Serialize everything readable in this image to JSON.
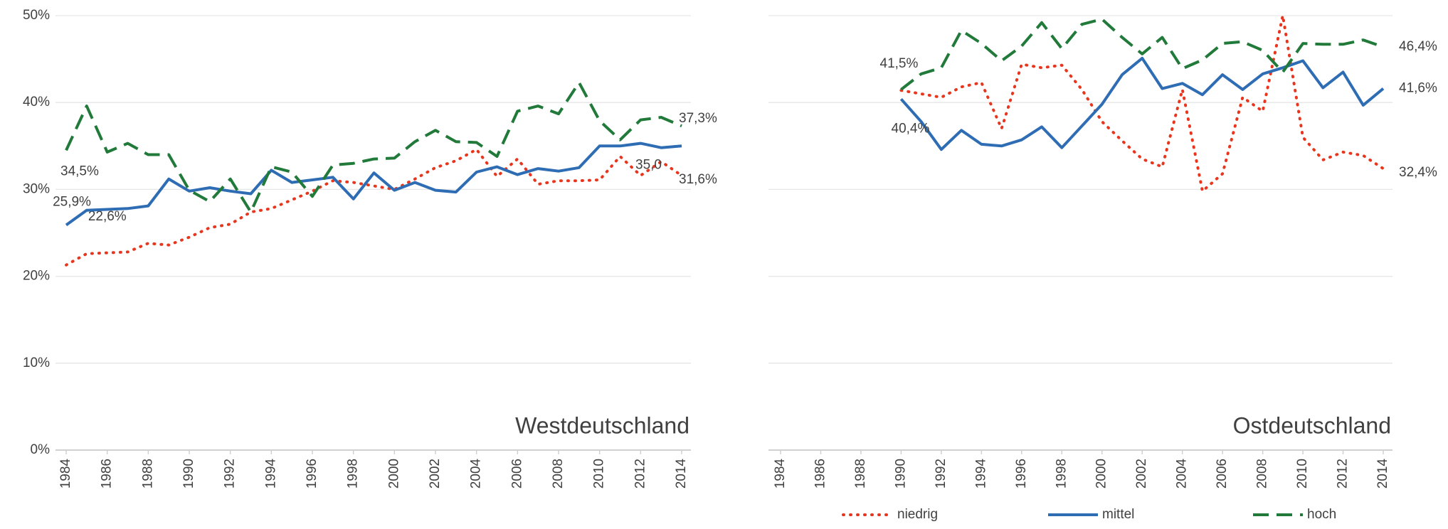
{
  "chart_data": [
    {
      "type": "line",
      "title": "Westdeutschland",
      "x": [
        1984,
        1985,
        1986,
        1987,
        1988,
        1989,
        1990,
        1991,
        1992,
        1993,
        1994,
        1995,
        1996,
        1997,
        1998,
        1999,
        2000,
        2001,
        2002,
        2003,
        2004,
        2005,
        2006,
        2007,
        2008,
        2009,
        2010,
        2011,
        2012,
        2013,
        2014
      ],
      "xlim": [
        1984,
        2014
      ],
      "xticks": [
        1984,
        1986,
        1988,
        1990,
        1992,
        1994,
        1996,
        1998,
        2000,
        2002,
        2004,
        2006,
        2008,
        2010,
        2012,
        2014
      ],
      "ylim": [
        0,
        50
      ],
      "yticks": [
        {
          "value": 0,
          "label": "0%"
        },
        {
          "value": 10,
          "label": "10%"
        },
        {
          "value": 20,
          "label": "20%"
        },
        {
          "value": 30,
          "label": "30%"
        },
        {
          "value": 40,
          "label": "40%"
        },
        {
          "value": 50,
          "label": "50%"
        }
      ],
      "grid": true,
      "series": [
        {
          "color": "#e8361e",
          "style": "dotted",
          "values": [
            21.3,
            22.6,
            22.7,
            22.8,
            23.8,
            23.6,
            24.5,
            25.6,
            26.0,
            27.4,
            27.8,
            28.8,
            29.8,
            31.0,
            30.8,
            30.4,
            30.0,
            31.2,
            32.5,
            33.3,
            34.6,
            31.5,
            33.5,
            30.6,
            31.0,
            31.0,
            31.1,
            33.8,
            31.6,
            33.2,
            31.6
          ],
          "value_labels": [
            null,
            "22,6%",
            null,
            null,
            null,
            null,
            null,
            null,
            null,
            null,
            null,
            null,
            null,
            null,
            null,
            null,
            null,
            null,
            null,
            null,
            null,
            null,
            null,
            null,
            null,
            null,
            null,
            null,
            null,
            null,
            "31,6%"
          ]
        },
        {
          "color": "#2e6db4",
          "style": "solid",
          "values": [
            25.9,
            27.6,
            27.7,
            27.8,
            28.1,
            31.2,
            29.8,
            30.2,
            29.8,
            29.5,
            32.2,
            30.8,
            31.1,
            31.4,
            28.9,
            31.9,
            29.9,
            30.8,
            29.9,
            29.7,
            32.0,
            32.6,
            31.7,
            32.4,
            32.1,
            32.5,
            35.0,
            35.0,
            35.3,
            34.8,
            35.0
          ],
          "value_labels": [
            "25,9%",
            null,
            null,
            null,
            null,
            null,
            null,
            null,
            null,
            null,
            null,
            null,
            null,
            null,
            null,
            null,
            null,
            null,
            null,
            null,
            null,
            null,
            null,
            null,
            null,
            null,
            null,
            null,
            null,
            null,
            "35,0"
          ]
        },
        {
          "color": "#217a3a",
          "style": "dashed",
          "values": [
            34.5,
            39.6,
            34.3,
            35.3,
            34.0,
            34.0,
            29.9,
            28.6,
            31.2,
            27.4,
            32.6,
            32.0,
            29.2,
            32.8,
            33.0,
            33.5,
            33.6,
            35.5,
            36.8,
            35.5,
            35.4,
            33.8,
            39.0,
            39.6,
            38.7,
            42.3,
            37.9,
            35.7,
            38.0,
            38.3,
            37.3
          ],
          "value_labels": [
            "34,5%",
            null,
            null,
            null,
            null,
            null,
            null,
            null,
            null,
            null,
            null,
            null,
            null,
            null,
            null,
            null,
            null,
            null,
            null,
            null,
            null,
            null,
            null,
            null,
            null,
            null,
            null,
            null,
            null,
            null,
            "37,3%"
          ]
        }
      ]
    },
    {
      "type": "line",
      "title": "Ostdeutschland",
      "x": [
        1984,
        1985,
        1986,
        1987,
        1988,
        1989,
        1990,
        1991,
        1992,
        1993,
        1994,
        1995,
        1996,
        1997,
        1998,
        1999,
        2000,
        2001,
        2002,
        2003,
        2004,
        2005,
        2006,
        2007,
        2008,
        2009,
        2010,
        2011,
        2012,
        2013,
        2014
      ],
      "xlim": [
        1984,
        2014
      ],
      "xticks": [
        1984,
        1986,
        1988,
        1990,
        1992,
        1994,
        1996,
        1998,
        2000,
        2002,
        2004,
        2006,
        2008,
        2010,
        2012,
        2014
      ],
      "ylim": [
        0,
        50
      ],
      "ygrid": [
        0,
        10,
        20,
        30,
        40,
        50
      ],
      "grid": true,
      "series": [
        {
          "name": "niedrig",
          "color": "#e8361e",
          "style": "dotted",
          "values": [
            null,
            null,
            null,
            null,
            null,
            null,
            41.4,
            41.0,
            40.6,
            41.8,
            42.3,
            37.0,
            44.4,
            44.0,
            44.3,
            41.5,
            37.8,
            35.6,
            33.5,
            32.6,
            41.5,
            29.8,
            31.8,
            40.6,
            39.0,
            50.0,
            36.0,
            33.4,
            34.3,
            33.9,
            32.4
          ],
          "value_labels": [
            null,
            null,
            null,
            null,
            null,
            null,
            null,
            null,
            null,
            null,
            null,
            null,
            null,
            null,
            null,
            null,
            null,
            null,
            null,
            null,
            null,
            null,
            null,
            null,
            null,
            null,
            null,
            null,
            null,
            null,
            "32,4%"
          ]
        },
        {
          "name": "mittel",
          "color": "#2e6db4",
          "style": "solid",
          "values": [
            null,
            null,
            null,
            null,
            null,
            null,
            40.4,
            37.8,
            34.6,
            36.8,
            35.2,
            35.0,
            35.7,
            37.2,
            34.8,
            37.3,
            39.8,
            43.2,
            45.1,
            41.6,
            42.2,
            40.9,
            43.2,
            41.5,
            43.3,
            44.0,
            44.8,
            41.7,
            43.5,
            39.7,
            41.6
          ],
          "value_labels": [
            null,
            null,
            null,
            null,
            null,
            null,
            "40,4%",
            null,
            null,
            null,
            null,
            null,
            null,
            null,
            null,
            null,
            null,
            null,
            null,
            null,
            null,
            null,
            null,
            null,
            null,
            null,
            null,
            null,
            null,
            null,
            "41,6%"
          ]
        },
        {
          "name": "hoch",
          "color": "#217a3a",
          "style": "dashed",
          "values": [
            null,
            null,
            null,
            null,
            null,
            null,
            41.5,
            43.3,
            44.0,
            48.3,
            46.8,
            44.8,
            46.5,
            49.2,
            46.2,
            49.0,
            49.6,
            47.5,
            45.6,
            47.5,
            43.9,
            44.9,
            46.8,
            47.0,
            46.0,
            43.5,
            46.8,
            46.7,
            46.7,
            47.2,
            46.4
          ],
          "value_labels": [
            null,
            null,
            null,
            null,
            null,
            null,
            "41,5%",
            null,
            null,
            null,
            null,
            null,
            null,
            null,
            null,
            null,
            null,
            null,
            null,
            null,
            null,
            null,
            null,
            null,
            null,
            null,
            null,
            null,
            null,
            null,
            "46,4%"
          ]
        }
      ]
    }
  ]
}
